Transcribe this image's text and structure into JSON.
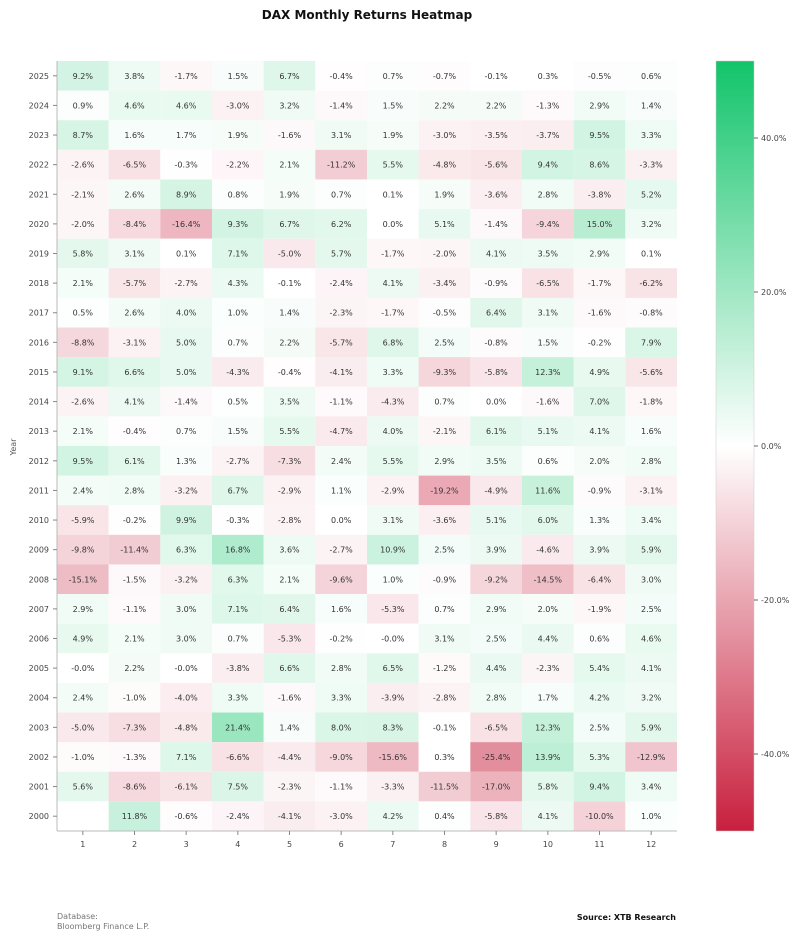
{
  "chart_data": {
    "type": "heatmap",
    "title": "DAX Monthly Returns Heatmap",
    "xlabel": "",
    "ylabel": "Year",
    "x_categories": [
      "1",
      "2",
      "3",
      "4",
      "5",
      "6",
      "7",
      "8",
      "9",
      "10",
      "11",
      "12"
    ],
    "y_categories": [
      "2025",
      "2024",
      "2023",
      "2022",
      "2021",
      "2020",
      "2019",
      "2018",
      "2017",
      "2016",
      "2015",
      "2014",
      "2013",
      "2012",
      "2011",
      "2010",
      "2009",
      "2008",
      "2007",
      "2006",
      "2005",
      "2004",
      "2003",
      "2002",
      "2001",
      "2000"
    ],
    "cells": [
      [
        "9.2%",
        "3.8%",
        "-1.7%",
        "1.5%",
        "6.7%",
        "-0.4%",
        "0.7%",
        "-0.7%",
        "-0.1%",
        "0.3%",
        "-0.5%",
        "0.6%"
      ],
      [
        "0.9%",
        "4.6%",
        "4.6%",
        "-3.0%",
        "3.2%",
        "-1.4%",
        "1.5%",
        "2.2%",
        "2.2%",
        "-1.3%",
        "2.9%",
        "1.4%"
      ],
      [
        "8.7%",
        "1.6%",
        "1.7%",
        "1.9%",
        "-1.6%",
        "3.1%",
        "1.9%",
        "-3.0%",
        "-3.5%",
        "-3.7%",
        "9.5%",
        "3.3%"
      ],
      [
        "-2.6%",
        "-6.5%",
        "-0.3%",
        "-2.2%",
        "2.1%",
        "-11.2%",
        "5.5%",
        "-4.8%",
        "-5.6%",
        "9.4%",
        "8.6%",
        "-3.3%"
      ],
      [
        "-2.1%",
        "2.6%",
        "8.9%",
        "0.8%",
        "1.9%",
        "0.7%",
        "0.1%",
        "1.9%",
        "-3.6%",
        "2.8%",
        "-3.8%",
        "5.2%"
      ],
      [
        "-2.0%",
        "-8.4%",
        "-16.4%",
        "9.3%",
        "6.7%",
        "6.2%",
        "0.0%",
        "5.1%",
        "-1.4%",
        "-9.4%",
        "15.0%",
        "3.2%"
      ],
      [
        "5.8%",
        "3.1%",
        "0.1%",
        "7.1%",
        "-5.0%",
        "5.7%",
        "-1.7%",
        "-2.0%",
        "4.1%",
        "3.5%",
        "2.9%",
        "0.1%"
      ],
      [
        "2.1%",
        "-5.7%",
        "-2.7%",
        "4.3%",
        "-0.1%",
        "-2.4%",
        "4.1%",
        "-3.4%",
        "-0.9%",
        "-6.5%",
        "-1.7%",
        "-6.2%"
      ],
      [
        "0.5%",
        "2.6%",
        "4.0%",
        "1.0%",
        "1.4%",
        "-2.3%",
        "-1.7%",
        "-0.5%",
        "6.4%",
        "3.1%",
        "-1.6%",
        "-0.8%"
      ],
      [
        "-8.8%",
        "-3.1%",
        "5.0%",
        "0.7%",
        "2.2%",
        "-5.7%",
        "6.8%",
        "2.5%",
        "-0.8%",
        "1.5%",
        "-0.2%",
        "7.9%"
      ],
      [
        "9.1%",
        "6.6%",
        "5.0%",
        "-4.3%",
        "-0.4%",
        "-4.1%",
        "3.3%",
        "-9.3%",
        "-5.8%",
        "12.3%",
        "4.9%",
        "-5.6%"
      ],
      [
        "-2.6%",
        "4.1%",
        "-1.4%",
        "0.5%",
        "3.5%",
        "-1.1%",
        "-4.3%",
        "0.7%",
        "0.0%",
        "-1.6%",
        "7.0%",
        "-1.8%"
      ],
      [
        "2.1%",
        "-0.4%",
        "0.7%",
        "1.5%",
        "5.5%",
        "-4.7%",
        "4.0%",
        "-2.1%",
        "6.1%",
        "5.1%",
        "4.1%",
        "1.6%"
      ],
      [
        "9.5%",
        "6.1%",
        "1.3%",
        "-2.7%",
        "-7.3%",
        "2.4%",
        "5.5%",
        "2.9%",
        "3.5%",
        "0.6%",
        "2.0%",
        "2.8%"
      ],
      [
        "2.4%",
        "2.8%",
        "-3.2%",
        "6.7%",
        "-2.9%",
        "1.1%",
        "-2.9%",
        "-19.2%",
        "-4.9%",
        "11.6%",
        "-0.9%",
        "-3.1%"
      ],
      [
        "-5.9%",
        "-0.2%",
        "9.9%",
        "-0.3%",
        "-2.8%",
        "0.0%",
        "3.1%",
        "-3.6%",
        "5.1%",
        "6.0%",
        "1.3%",
        "3.4%"
      ],
      [
        "-9.8%",
        "-11.4%",
        "6.3%",
        "16.8%",
        "3.6%",
        "-2.7%",
        "10.9%",
        "2.5%",
        "3.9%",
        "-4.6%",
        "3.9%",
        "5.9%"
      ],
      [
        "-15.1%",
        "-1.5%",
        "-3.2%",
        "6.3%",
        "2.1%",
        "-9.6%",
        "1.0%",
        "-0.9%",
        "-9.2%",
        "-14.5%",
        "-6.4%",
        "3.0%"
      ],
      [
        "2.9%",
        "-1.1%",
        "3.0%",
        "7.1%",
        "6.4%",
        "1.6%",
        "-5.3%",
        "0.7%",
        "2.9%",
        "2.0%",
        "-1.9%",
        "2.5%"
      ],
      [
        "4.9%",
        "2.1%",
        "3.0%",
        "0.7%",
        "-5.3%",
        "-0.2%",
        "-0.0%",
        "3.1%",
        "2.5%",
        "4.4%",
        "0.6%",
        "4.6%"
      ],
      [
        "-0.0%",
        "2.2%",
        "-0.0%",
        "-3.8%",
        "6.6%",
        "2.8%",
        "6.5%",
        "-1.2%",
        "4.4%",
        "-2.3%",
        "5.4%",
        "4.1%"
      ],
      [
        "2.4%",
        "-1.0%",
        "-4.0%",
        "3.3%",
        "-1.6%",
        "3.3%",
        "-3.9%",
        "-2.8%",
        "2.8%",
        "1.7%",
        "4.2%",
        "3.2%"
      ],
      [
        "-5.0%",
        "-7.3%",
        "-4.8%",
        "21.4%",
        "1.4%",
        "8.0%",
        "8.3%",
        "-0.1%",
        "-6.5%",
        "12.3%",
        "2.5%",
        "5.9%"
      ],
      [
        "-1.0%",
        "-1.3%",
        "7.1%",
        "-6.6%",
        "-4.4%",
        "-9.0%",
        "-15.6%",
        "0.3%",
        "-25.4%",
        "13.9%",
        "5.3%",
        "-12.9%"
      ],
      [
        "5.6%",
        "-8.6%",
        "-6.1%",
        "7.5%",
        "-2.3%",
        "-1.1%",
        "-3.3%",
        "-11.5%",
        "-17.0%",
        "5.8%",
        "9.4%",
        "3.4%"
      ],
      [
        "",
        "11.8%",
        "-0.6%",
        "-2.4%",
        "-4.1%",
        "-3.0%",
        "4.2%",
        "0.4%",
        "-5.8%",
        "4.1%",
        "-10.0%",
        "1.0%"
      ]
    ],
    "colorbar": {
      "range": [
        -50,
        50
      ],
      "ticks": [
        40,
        20,
        0,
        -20,
        -40
      ],
      "tick_labels": [
        "40.0%",
        "20.0%",
        "0.0%",
        "-20.0%",
        "-40.0%"
      ],
      "color_positive": "#12c46a",
      "color_zero": "#ffffff",
      "color_negative": "#c8203e"
    },
    "grid": false
  },
  "footer": {
    "database_label": "Database:",
    "database_value": "Bloomberg Finance L.P.",
    "source": "Source: XTB Research"
  }
}
